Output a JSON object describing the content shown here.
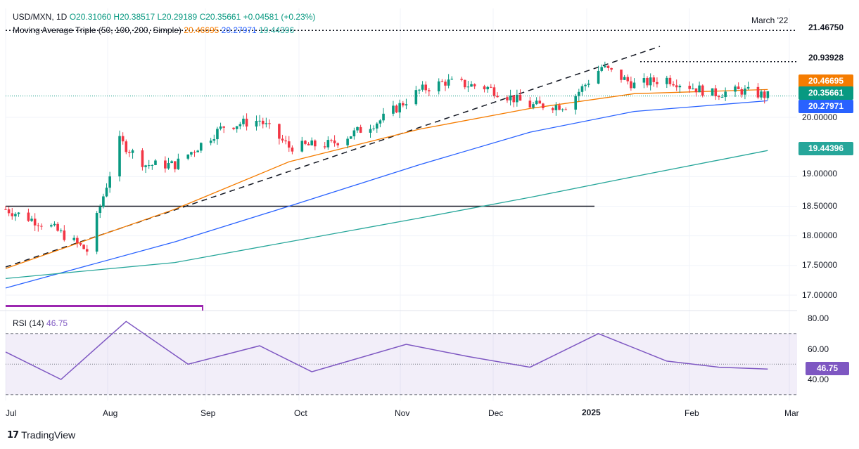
{
  "header": {
    "symbol": "USD/MXN, 1D",
    "open": "O20.31060",
    "high": "H20.38517",
    "low": "L20.29189",
    "close": "C20.35661",
    "change": "+0.04581 (+0.23%)",
    "ma_label": "Moving Average Triple (50, 100, 200, Simple)",
    "ma50": "20.46695",
    "ma100": "20.27971",
    "ma200": "19.44396",
    "annotation": "March '22"
  },
  "price_axis": [
    "20.00000",
    "19.00000",
    "18.50000",
    "18.00000",
    "17.50000",
    "17.00000"
  ],
  "price_tags": [
    {
      "label": "21.46750",
      "bg": "#ffffff",
      "fg": "#131722"
    },
    {
      "label": "20.93928",
      "bg": "#ffffff",
      "fg": "#131722"
    },
    {
      "label": "20.46695",
      "bg": "#f57c00",
      "fg": "#ffffff"
    },
    {
      "label": "20.35661",
      "bg": "#089981",
      "fg": "#ffffff"
    },
    {
      "label": "20.27971",
      "bg": "#2962ff",
      "fg": "#ffffff"
    },
    {
      "label": "19.44396",
      "bg": "#26a69a",
      "fg": "#ffffff"
    }
  ],
  "rsi": {
    "label": "RSI (14)",
    "value": "46.75",
    "axis": [
      "80.00",
      "60.00",
      "40.00"
    ],
    "upper": 70,
    "lower": 30,
    "mid": 50
  },
  "time_axis": [
    "Jul",
    "Aug",
    "Sep",
    "Oct",
    "Nov",
    "Dec",
    "2025",
    "Feb",
    "Mar"
  ],
  "brand": "TradingView",
  "colors": {
    "up": "#089981",
    "down": "#f23645",
    "ma50": "#f57c00",
    "ma100": "#2962ff",
    "ma200": "#26a69a",
    "rsi": "#7e57c2"
  },
  "chart_data": {
    "type": "line",
    "title": "USD/MXN, 1D",
    "xlabel": "",
    "ylabel": "",
    "ylim": [
      16.8,
      21.6
    ],
    "x_range": [
      "2024-07-01",
      "2025-03-01"
    ],
    "y_scale": "linear",
    "grid": true,
    "legend": "top-left",
    "series": [
      {
        "name": "USD/MXN",
        "x": [
          "2024-07-01",
          "2024-07-15",
          "2024-07-26",
          "2024-08-05",
          "2024-08-13",
          "2024-08-22",
          "2024-09-06",
          "2024-09-17",
          "2024-09-26",
          "2024-10-09",
          "2024-10-24",
          "2024-11-05",
          "2024-11-13",
          "2024-11-26",
          "2024-12-09",
          "2024-12-20",
          "2024-12-31",
          "2025-01-10",
          "2025-01-20",
          "2025-02-03",
          "2025-02-12",
          "2025-02-20"
        ],
        "values": [
          18.45,
          18.15,
          17.75,
          19.6,
          19.2,
          19.2,
          19.85,
          19.95,
          19.5,
          19.55,
          19.95,
          20.45,
          20.6,
          20.5,
          20.2,
          20.2,
          20.85,
          20.55,
          20.65,
          20.4,
          20.45,
          20.36
        ]
      },
      {
        "name": "50",
        "x": [
          "2024-07-01",
          "2024-08-22",
          "2024-09-26",
          "2024-11-05",
          "2024-12-09",
          "2025-01-10",
          "2025-02-20"
        ],
        "values": [
          17.45,
          18.45,
          19.25,
          19.8,
          20.15,
          20.4,
          20.47
        ]
      },
      {
        "name": "100",
        "x": [
          "2024-07-01",
          "2024-08-22",
          "2024-09-26",
          "2024-11-05",
          "2024-12-09",
          "2025-01-10",
          "2025-02-20"
        ],
        "values": [
          17.12,
          17.9,
          18.5,
          19.2,
          19.75,
          20.1,
          20.28
        ]
      },
      {
        "name": "200",
        "x": [
          "2024-07-01",
          "2024-08-22",
          "2024-09-26",
          "2024-11-05",
          "2024-12-09",
          "2025-01-10",
          "2025-02-20"
        ],
        "values": [
          17.28,
          17.55,
          17.9,
          18.3,
          18.65,
          19.0,
          19.44
        ]
      },
      {
        "name": "RSI (14)",
        "x": [
          "2024-07-01",
          "2024-07-18",
          "2024-08-07",
          "2024-08-26",
          "2024-09-17",
          "2024-10-03",
          "2024-11-01",
          "2024-11-20",
          "2024-12-09",
          "2024-12-30",
          "2025-01-20",
          "2025-02-05",
          "2025-02-20"
        ],
        "values": [
          58,
          40,
          78,
          50,
          62,
          45,
          63,
          55,
          48,
          70,
          52,
          48,
          46.75
        ]
      }
    ],
    "levels": [
      {
        "label": "21.46750",
        "value": 21.4675
      },
      {
        "label": "20.93928",
        "value": 20.93928
      },
      {
        "value": 18.5
      }
    ]
  }
}
